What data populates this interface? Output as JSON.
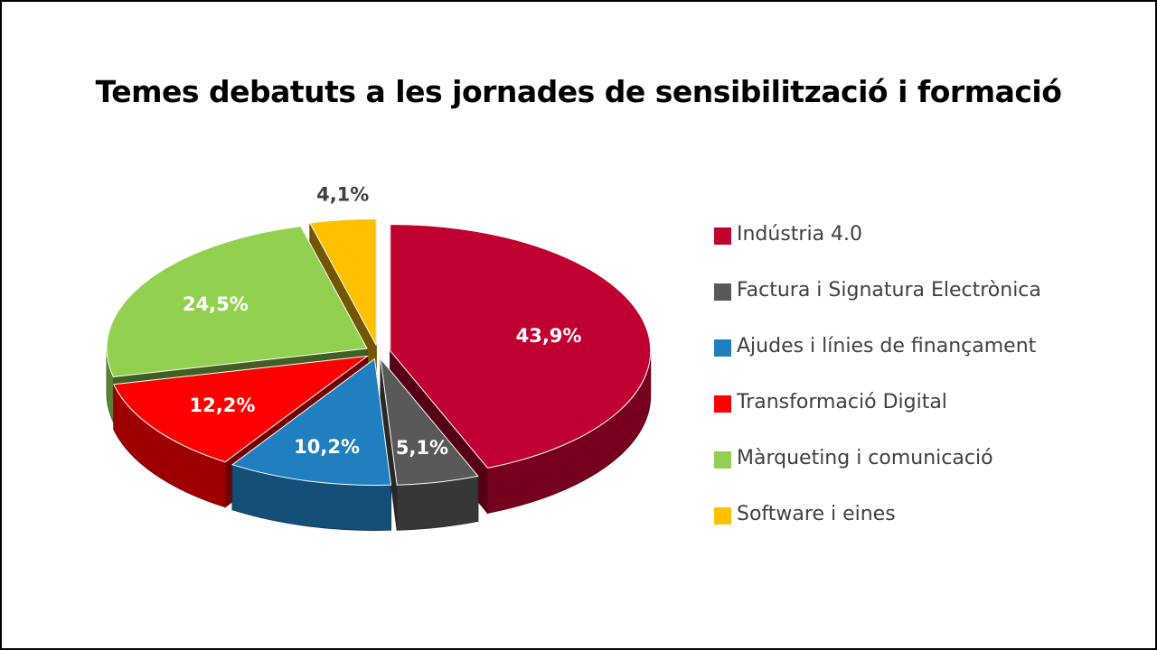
{
  "chart_data": {
    "type": "pie",
    "title": "Temes debatuts a les jornades de sensibilització i formació",
    "legend_position": "right",
    "exploded": true,
    "three_d": true,
    "slices": [
      {
        "label": "Indústria 4.0",
        "value": 43.9,
        "value_label": "43,9%",
        "color": "#BF0030"
      },
      {
        "label": "Factura i Signatura Electrònica",
        "value": 5.1,
        "value_label": "5,1%",
        "color": "#595959"
      },
      {
        "label": "Ajudes i línies de finançament",
        "value": 10.2,
        "value_label": "10,2%",
        "color": "#1F7FBF"
      },
      {
        "label": "Transformació Digital",
        "value": 12.2,
        "value_label": "12,2%",
        "color": "#FF0000"
      },
      {
        "label": "Màrqueting i comunicació",
        "value": 24.5,
        "value_label": "24,5%",
        "color": "#92D050"
      },
      {
        "label": "Software i eines",
        "value": 4.1,
        "value_label": "4,1%",
        "color": "#FFC000"
      }
    ]
  }
}
